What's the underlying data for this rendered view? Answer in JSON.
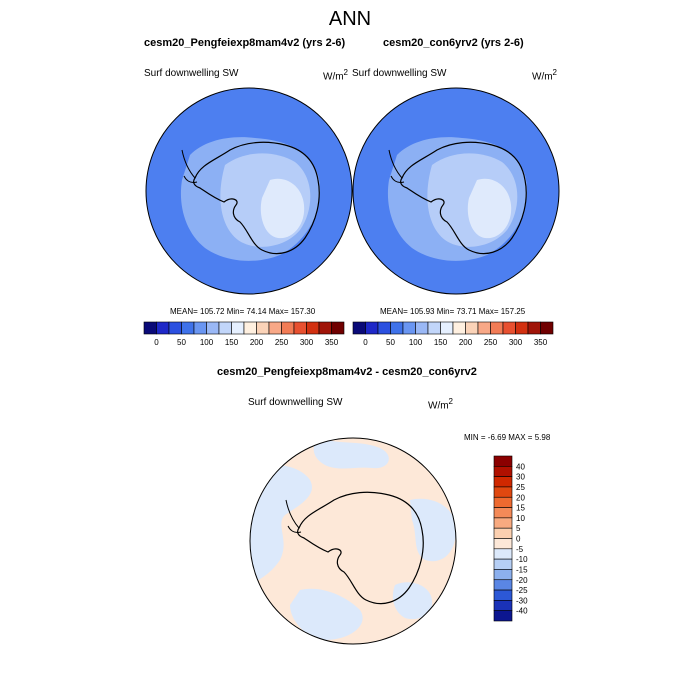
{
  "title": "ANN",
  "panels": [
    {
      "case": "cesm20_Pengfeiexp8mam4v2 (yrs 2-6)",
      "variable": "Surf downwelling SW",
      "units_base": "W/m",
      "units_exp": "2",
      "stats": "MEAN= 105.72  Min=  74.14  Max= 157.30"
    },
    {
      "case": "cesm20_con6yrv2 (yrs 2-6)",
      "variable": "Surf downwelling SW",
      "units_base": "W/m",
      "units_exp": "2",
      "stats": "MEAN= 105.93  Min=  73.71  Max= 157.25"
    }
  ],
  "diff": {
    "title": "cesm20_Pengfeiexp8mam4v2 - cesm20_con6yrv2",
    "variable": "Surf downwelling SW",
    "units_base": "W/m",
    "units_exp": "2",
    "minmax": "MIN =  -6.69 MAX =   5.98"
  },
  "chart_data": [
    {
      "type": "heatmap",
      "projection": "south-polar-stereographic",
      "title": "cesm20_Pengfeiexp8mam4v2 (yrs 2-6)",
      "variable": "Surf downwelling SW",
      "units": "W/m2",
      "mean": 105.72,
      "min": 74.14,
      "max": 157.3,
      "colorbar": {
        "tick_labels": [
          "0",
          "50",
          "100",
          "150",
          "200",
          "250",
          "300",
          "350"
        ],
        "colors": [
          "#0a0a78",
          "#1e28c8",
          "#2b50e0",
          "#3f72ea",
          "#6a96f2",
          "#9ab8f6",
          "#c2d6fa",
          "#e6f0ff",
          "#fff0e0",
          "#fbd3b8",
          "#f8a887",
          "#f27c56",
          "#e85030",
          "#d23010",
          "#a01408",
          "#700000"
        ]
      }
    },
    {
      "type": "heatmap",
      "projection": "south-polar-stereographic",
      "title": "cesm20_con6yrv2 (yrs 2-6)",
      "variable": "Surf downwelling SW",
      "units": "W/m2",
      "mean": 105.93,
      "min": 73.71,
      "max": 157.25,
      "colorbar": {
        "tick_labels": [
          "0",
          "50",
          "100",
          "150",
          "200",
          "250",
          "300",
          "350"
        ],
        "colors": [
          "#0a0a78",
          "#1e28c8",
          "#2b50e0",
          "#3f72ea",
          "#6a96f2",
          "#9ab8f6",
          "#c2d6fa",
          "#e6f0ff",
          "#fff0e0",
          "#fbd3b8",
          "#f8a887",
          "#f27c56",
          "#e85030",
          "#d23010",
          "#a01408",
          "#700000"
        ]
      }
    },
    {
      "type": "heatmap",
      "projection": "south-polar-stereographic",
      "title": "cesm20_Pengfeiexp8mam4v2 - cesm20_con6yrv2",
      "variable": "Surf downwelling SW",
      "units": "W/m2",
      "min": -6.69,
      "max": 5.98,
      "colorbar": {
        "orientation": "vertical",
        "tick_labels": [
          "40",
          "30",
          "25",
          "20",
          "15",
          "10",
          "5",
          "0",
          "-5",
          "-10",
          "-15",
          "-20",
          "-25",
          "-30",
          "-40"
        ],
        "colors": [
          "#8b0000",
          "#b01000",
          "#d02800",
          "#e04810",
          "#ee6a30",
          "#f48a58",
          "#f8aa80",
          "#fcd0b0",
          "#fde8d8",
          "#dce9fb",
          "#b6cff5",
          "#8cb0ee",
          "#5a86e4",
          "#2c58d6",
          "#1a32b8",
          "#0c1690"
        ]
      }
    }
  ]
}
